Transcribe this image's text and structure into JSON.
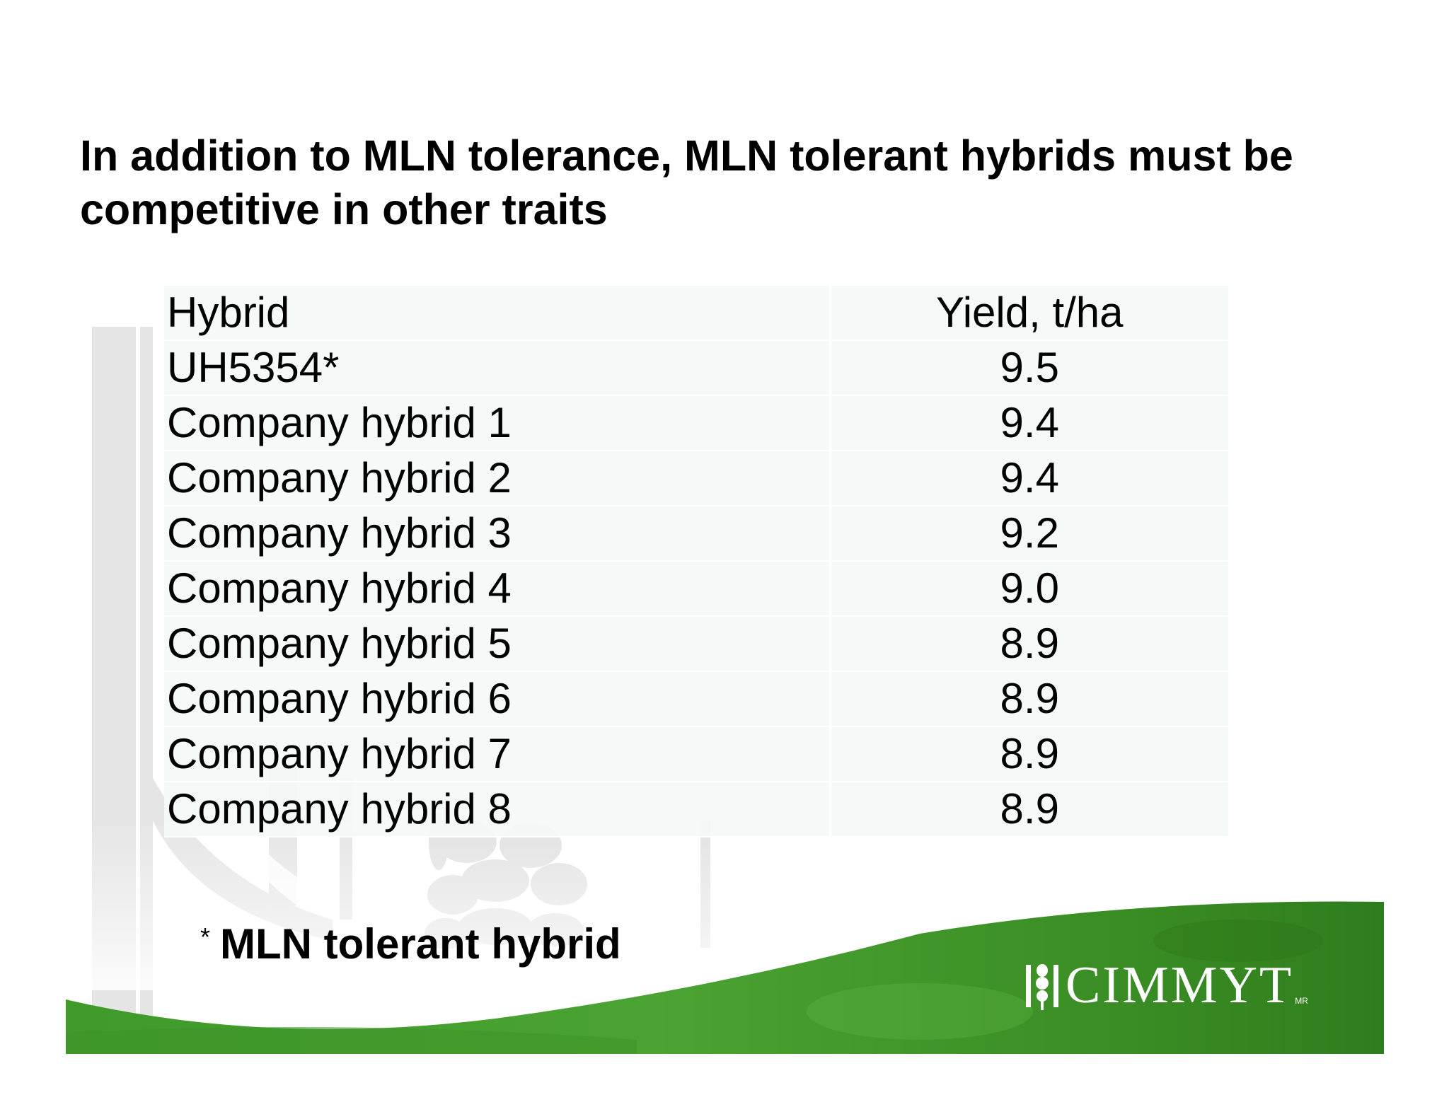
{
  "slide": {
    "title": "In addition to MLN tolerance, MLN tolerant hybrids must be competitive in other traits",
    "table": {
      "headers": [
        "Hybrid",
        "Yield, t/ha"
      ],
      "rows": [
        [
          "UH5354*",
          "9.5"
        ],
        [
          "Company hybrid 1",
          "9.4"
        ],
        [
          "Company hybrid 2",
          "9.4"
        ],
        [
          "Company hybrid 3",
          "9.2"
        ],
        [
          "Company hybrid 4",
          "9.0"
        ],
        [
          "Company hybrid 5",
          "8.9"
        ],
        [
          "Company hybrid 6",
          "8.9"
        ],
        [
          "Company hybrid 7",
          "8.9"
        ],
        [
          "Company hybrid 8",
          "8.9"
        ]
      ]
    },
    "footnote": {
      "marker": "*",
      "text": "MLN tolerant hybrid"
    },
    "logo": {
      "text": "CIMMYT",
      "suffix": "MR"
    },
    "colors": {
      "banner_green": "#4a9a2c",
      "banner_dark": "#2f7a1c",
      "table_bg": "#f4faf7",
      "watermark": "#e4e4e4"
    }
  }
}
